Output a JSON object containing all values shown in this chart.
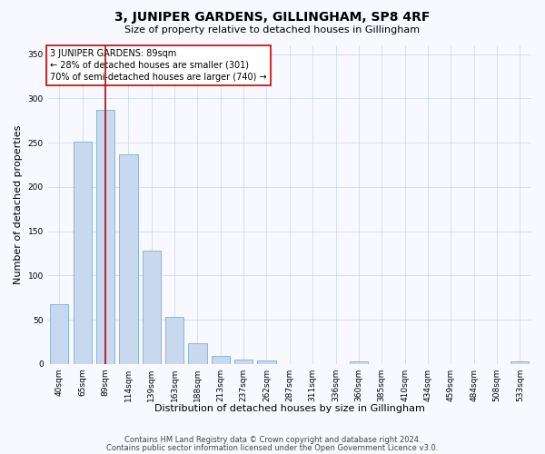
{
  "title": "3, JUNIPER GARDENS, GILLINGHAM, SP8 4RF",
  "subtitle": "Size of property relative to detached houses in Gillingham",
  "xlabel": "Distribution of detached houses by size in Gillingham",
  "ylabel": "Number of detached properties",
  "categories": [
    "40sqm",
    "65sqm",
    "89sqm",
    "114sqm",
    "139sqm",
    "163sqm",
    "188sqm",
    "213sqm",
    "237sqm",
    "262sqm",
    "287sqm",
    "311sqm",
    "336sqm",
    "360sqm",
    "385sqm",
    "410sqm",
    "434sqm",
    "459sqm",
    "484sqm",
    "508sqm",
    "533sqm"
  ],
  "values": [
    68,
    251,
    287,
    237,
    128,
    53,
    24,
    9,
    5,
    4,
    0,
    0,
    0,
    3,
    0,
    0,
    0,
    0,
    0,
    0,
    3
  ],
  "bar_color": "#c8d8ee",
  "bar_edge_color": "#7fafd4",
  "highlight_index": 2,
  "highlight_color": "#cc0000",
  "ylim": [
    0,
    360
  ],
  "yticks": [
    0,
    50,
    100,
    150,
    200,
    250,
    300,
    350
  ],
  "annotation_text": "3 JUNIPER GARDENS: 89sqm\n← 28% of detached houses are smaller (301)\n70% of semi-detached houses are larger (740) →",
  "annotation_box_color": "#ffffff",
  "annotation_box_edge": "#cc0000",
  "footer_line1": "Contains HM Land Registry data © Crown copyright and database right 2024.",
  "footer_line2": "Contains public sector information licensed under the Open Government Licence v3.0.",
  "bg_color": "#f7f9ff",
  "plot_bg_color": "#f7f9ff",
  "title_fontsize": 10,
  "subtitle_fontsize": 8,
  "ylabel_fontsize": 8,
  "xlabel_fontsize": 8,
  "tick_fontsize": 6.5,
  "annot_fontsize": 7,
  "footer_fontsize": 6
}
